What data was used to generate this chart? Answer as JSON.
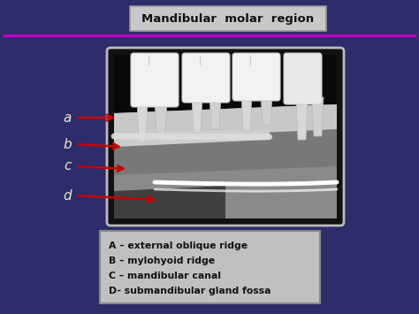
{
  "background_color": "#2D2D6B",
  "title_text": "Mandibular  molar  region",
  "title_box_color_top": "#D8D8D8",
  "title_box_color_bot": "#A0A0A0",
  "title_box_edge": "#999999",
  "title_text_color": "#111111",
  "separator_color": "#BB00BB",
  "labels": [
    "a",
    "b",
    "c",
    "d"
  ],
  "label_color": "#E8E8C8",
  "legend_lines": [
    "A – external oblique ridge",
    "B – mylohyoid ridge",
    "C – mandibular canal",
    "D- submandibular gland fossa"
  ],
  "legend_bg_top": "#D5D5D5",
  "legend_bg_bot": "#909090",
  "legend_edge": "#888888",
  "arrow_color": "#CC0000",
  "radiograph_bg": "#111111",
  "radiograph_border": "#BBBBBB",
  "tooth_white": "#EEEEEE",
  "gray_light": "#B8B8B8",
  "gray_mid": "#888888",
  "gray_dark": "#555555",
  "gray_darker": "#3A3A3A"
}
